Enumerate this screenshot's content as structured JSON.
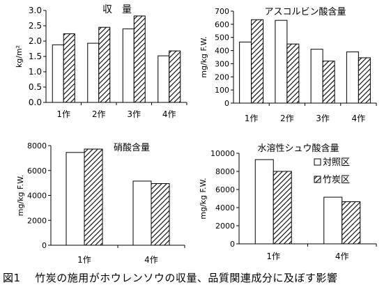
{
  "figure_caption": "図1　 竹炭の施用がホウレンソウの収量、品質関連成分に及ぼす影響",
  "legend": {
    "control_label": "対照区",
    "charcoal_label": "竹炭区"
  },
  "colors": {
    "control": "#ffffff",
    "charcoal": "hatched",
    "axis": "#000000"
  },
  "chart_data": [
    {
      "type": "bar",
      "title": "収　量",
      "ylabel": "kg/m²",
      "categories": [
        "1作",
        "2作",
        "3作",
        "4作"
      ],
      "ylim": [
        0,
        3.0
      ],
      "yticks": [
        "0.0",
        "0.5",
        "1.0",
        "1.5",
        "2.0",
        "2.5",
        "3.0"
      ],
      "series": [
        {
          "name": "対照区",
          "values": [
            1.88,
            1.93,
            2.4,
            1.52
          ]
        },
        {
          "name": "竹炭区",
          "values": [
            2.24,
            2.45,
            2.82,
            1.68
          ]
        }
      ]
    },
    {
      "type": "bar",
      "title": "アスコルビン酸含量",
      "ylabel": "mg/kg F.W.",
      "categories": [
        "1作",
        "2作",
        "3作",
        "4作"
      ],
      "ylim": [
        0,
        700
      ],
      "yticks": [
        "0",
        "100",
        "200",
        "300",
        "400",
        "500",
        "600",
        "700"
      ],
      "series": [
        {
          "name": "対照区",
          "values": [
            465,
            630,
            410,
            390
          ]
        },
        {
          "name": "竹炭区",
          "values": [
            635,
            450,
            320,
            345
          ]
        }
      ]
    },
    {
      "type": "bar",
      "title": "硝酸含量",
      "ylabel": "mg/kg F.W.",
      "categories": [
        "1作",
        "4作"
      ],
      "ylim": [
        0,
        8000
      ],
      "yticks": [
        "0",
        "2000",
        "4000",
        "6000",
        "8000"
      ],
      "series": [
        {
          "name": "対照区",
          "values": [
            7450,
            5150
          ]
        },
        {
          "name": "竹炭区",
          "values": [
            7720,
            4950
          ]
        }
      ]
    },
    {
      "type": "bar",
      "title": "水溶性シュウ酸含量",
      "ylabel": "mg/kg F.W.",
      "categories": [
        "1作",
        "4作"
      ],
      "ylim": [
        0,
        10000
      ],
      "yticks": [
        "0",
        "2000",
        "4000",
        "6000",
        "8000",
        "10000"
      ],
      "series": [
        {
          "name": "対照区",
          "values": [
            9300,
            5150
          ]
        },
        {
          "name": "竹炭区",
          "values": [
            8000,
            4650
          ]
        }
      ]
    }
  ]
}
